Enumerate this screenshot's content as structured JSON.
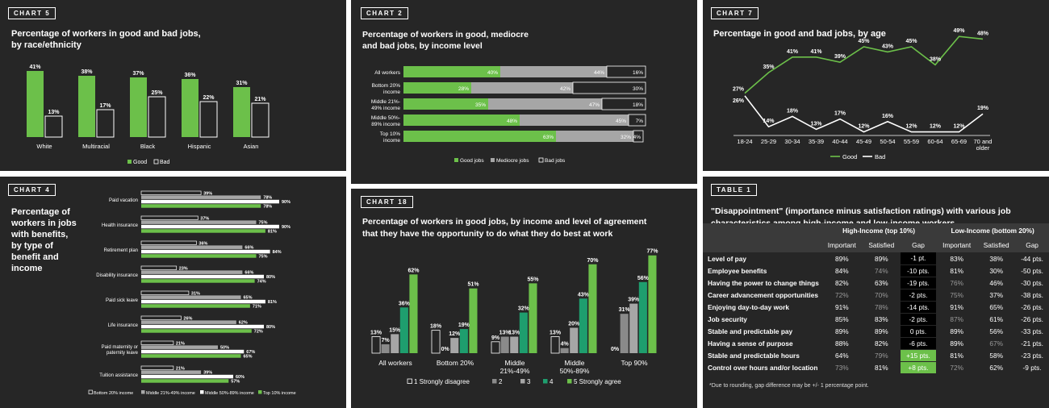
{
  "colors": {
    "panel_bg": "#262626",
    "good_green": "#6cc04a",
    "mediocre_gray": "#a6a6a6",
    "mid_gray": "#8a8a8a",
    "dark_green": "#1e9e6e",
    "white": "#ffffff"
  },
  "chart5": {
    "tag": "CHART 5",
    "title_line1": "Percentage of workers in good and bad jobs,",
    "title_line2": "by race/ethnicity"
  },
  "chart2": {
    "tag": "CHART 2",
    "title_line1": "Percentage of workers in good, mediocre",
    "title_line2": "and bad jobs, by income level"
  },
  "chart7": {
    "tag": "CHART 7",
    "title_line1": "Percentage in good and bad jobs, by age"
  },
  "chart4": {
    "tag": "CHART 4",
    "title_lines": [
      "Percentage of",
      "workers in jobs",
      "with benefits,",
      "by type of",
      "benefit and",
      "income"
    ]
  },
  "chart18": {
    "tag": "CHART 18",
    "title_line1": "Percentage of workers in good jobs, by income and level of agreement",
    "title_line2": "that they have the opportunity to do what they do best at work"
  },
  "chart_data": [
    {
      "id": "chart5",
      "type": "bar",
      "title": "Percentage of workers in good and bad jobs, by race/ethnicity",
      "categories": [
        "White",
        "Multiracial",
        "Black",
        "Hispanic",
        "Asian"
      ],
      "series": [
        {
          "name": "Good",
          "values": [
            41,
            38,
            37,
            36,
            31
          ]
        },
        {
          "name": "Bad",
          "values": [
            13,
            17,
            25,
            22,
            21
          ]
        }
      ],
      "ylim": [
        0,
        45
      ],
      "legend": "bottom",
      "value_suffix": "%"
    },
    {
      "id": "chart2",
      "type": "bar",
      "orientation": "horizontal-stacked",
      "title": "Percentage of workers in good, mediocre and bad jobs, by income level",
      "categories": [
        "All workers",
        "Bottom 20% income",
        "Middle 21%-49% income",
        "Middle 50%-89% income",
        "Top 10% income"
      ],
      "category_lines": [
        [
          "All workers"
        ],
        [
          "Bottom 20%",
          "income"
        ],
        [
          "Middle 21%-",
          "49% income"
        ],
        [
          "Middle 50%-",
          "89% income"
        ],
        [
          "Top 10%",
          "income"
        ]
      ],
      "series": [
        {
          "name": "Good jobs",
          "values": [
            40,
            28,
            35,
            48,
            63
          ]
        },
        {
          "name": "Mediocre jobs",
          "values": [
            44,
            42,
            47,
            45,
            32
          ]
        },
        {
          "name": "Bad jobs",
          "values": [
            16,
            30,
            18,
            7,
            4
          ]
        }
      ],
      "legend": "bottom",
      "value_suffix": "%"
    },
    {
      "id": "chart7",
      "type": "line",
      "title": "Percentage in good and bad jobs, by age",
      "categories": [
        "18-24",
        "25-29",
        "30-34",
        "35-39",
        "40-44",
        "45-49",
        "50-54",
        "55-59",
        "60-64",
        "65-69",
        "70 and older"
      ],
      "category_lines": [
        [
          "18-24"
        ],
        [
          "25-29"
        ],
        [
          "30-34"
        ],
        [
          "35-39"
        ],
        [
          "40-44"
        ],
        [
          "45-49"
        ],
        [
          "50-54"
        ],
        [
          "55-59"
        ],
        [
          "60-64"
        ],
        [
          "65-69"
        ],
        [
          "70 and",
          "older"
        ]
      ],
      "series": [
        {
          "name": "Good",
          "values": [
            27,
            35,
            41,
            41,
            39,
            45,
            43,
            45,
            38,
            49,
            48
          ]
        },
        {
          "name": "Bad",
          "values": [
            26,
            14,
            18,
            13,
            17,
            12,
            16,
            12,
            12,
            12,
            19
          ]
        }
      ],
      "legend": "bottom",
      "value_suffix": "%"
    },
    {
      "id": "chart4",
      "type": "bar",
      "orientation": "horizontal-grouped",
      "title": "Percentage of workers in jobs with benefits, by type of benefit and income",
      "categories": [
        "Paid vacation",
        "Health insurance",
        "Retirement plan",
        "Disability insurance",
        "Paid sick leave",
        "Life insurance",
        "Paid maternity or paternity leave",
        "Tuition assistance"
      ],
      "category_lines": [
        [
          "Paid vacation"
        ],
        [
          "Health insurance"
        ],
        [
          "Retirement plan"
        ],
        [
          "Disability insurance"
        ],
        [
          "Paid sick leave"
        ],
        [
          "Life insurance"
        ],
        [
          "Paid maternity or",
          "paternity leave"
        ],
        [
          "Tuition assistance"
        ]
      ],
      "series": [
        {
          "name": "Bottom 20% income",
          "values": [
            39,
            37,
            36,
            23,
            31,
            26,
            21,
            21
          ]
        },
        {
          "name": "Middle 21%-49% income",
          "values": [
            78,
            75,
            66,
            66,
            65,
            62,
            50,
            39
          ]
        },
        {
          "name": "Middle 50%-89% income",
          "values": [
            90,
            90,
            84,
            80,
            81,
            80,
            67,
            60
          ]
        },
        {
          "name": "Top 10% income",
          "values": [
            78,
            81,
            75,
            74,
            71,
            72,
            65,
            57
          ]
        }
      ],
      "legend": "bottom",
      "value_suffix": "%"
    },
    {
      "id": "chart18",
      "type": "bar",
      "title": "Percentage of workers in good jobs, by income and level of agreement that they have the opportunity to do what they do best at work",
      "categories": [
        "All workers",
        "Bottom 20%",
        "Middle 21%-49%",
        "Middle 50%-89%",
        "Top 90%"
      ],
      "category_lines": [
        [
          "All workers"
        ],
        [
          "Bottom 20%"
        ],
        [
          "Middle",
          "21%-49%"
        ],
        [
          "Middle",
          "50%-89%"
        ],
        [
          "Top 90%"
        ]
      ],
      "series": [
        {
          "name": "1 Strongly disagree",
          "values": [
            13,
            18,
            9,
            13,
            0
          ]
        },
        {
          "name": "2",
          "values": [
            7,
            0,
            13,
            4,
            31
          ]
        },
        {
          "name": "3",
          "values": [
            15,
            12,
            13,
            20,
            39
          ]
        },
        {
          "name": "4",
          "values": [
            36,
            19,
            32,
            43,
            56
          ]
        },
        {
          "name": "5 Strongly agree",
          "values": [
            62,
            51,
            55,
            70,
            77
          ]
        }
      ],
      "ylim": [
        0,
        80
      ],
      "legend": "bottom",
      "value_suffix": "%"
    },
    {
      "id": "table1",
      "type": "table",
      "tag": "TABLE 1",
      "title": "\"Disappointment\" (importance minus satisfaction ratings) with various job characteristics among high-income and low-income workers",
      "groups": [
        "High-Income (top 10%)",
        "Low-Income (bottom 20%)"
      ],
      "columns": [
        "Important",
        "Satisfied",
        "Gap",
        "Important",
        "Satisfied",
        "Gap"
      ],
      "rows": [
        {
          "label": "Level of pay",
          "cells": [
            "89%",
            "89%",
            "-1 pt.",
            "83%",
            "38%",
            "-44 pts."
          ],
          "hi_gap_style": "black",
          "dim": []
        },
        {
          "label": "Employee benefits",
          "cells": [
            "84%",
            "74%",
            "-10 pts.",
            "81%",
            "30%",
            "-50 pts."
          ],
          "hi_gap_style": "black",
          "dim": [
            1
          ]
        },
        {
          "label": "Having the power to change things",
          "cells": [
            "82%",
            "63%",
            "-19 pts.",
            "76%",
            "46%",
            "-30 pts."
          ],
          "hi_gap_style": "black",
          "dim": [
            3
          ]
        },
        {
          "label": "Career advancement opportunities",
          "cells": [
            "72%",
            "70%",
            "-2 pts.",
            "75%",
            "37%",
            "-38 pts."
          ],
          "hi_gap_style": "black",
          "dim": [
            0,
            1,
            3
          ]
        },
        {
          "label": "Enjoying day-to-day work",
          "cells": [
            "91%",
            "78%",
            "-14 pts.",
            "91%",
            "65%",
            "-26 pts."
          ],
          "hi_gap_style": "black",
          "dim": [
            1
          ]
        },
        {
          "label": "Job security",
          "cells": [
            "85%",
            "83%",
            "-2 pts.",
            "87%",
            "61%",
            "-26 pts."
          ],
          "hi_gap_style": "black",
          "dim": [
            3
          ]
        },
        {
          "label": "Stable and predictable pay",
          "cells": [
            "89%",
            "89%",
            "0 pts.",
            "89%",
            "56%",
            "-33 pts."
          ],
          "hi_gap_style": "black",
          "dim": []
        },
        {
          "label": "Having a sense of purpose",
          "cells": [
            "88%",
            "82%",
            "-6 pts.",
            "89%",
            "67%",
            "-21 pts."
          ],
          "hi_gap_style": "black",
          "dim": [
            4
          ]
        },
        {
          "label": "Stable and predictable hours",
          "cells": [
            "64%",
            "79%",
            "+15 pts.",
            "81%",
            "58%",
            "-23 pts."
          ],
          "hi_gap_style": "green",
          "dim": [
            1
          ]
        },
        {
          "label": "Control over hours and/or location",
          "cells": [
            "73%",
            "81%",
            "+8 pts.",
            "72%",
            "62%",
            "-9 pts."
          ],
          "hi_gap_style": "green",
          "dim": [
            0,
            3
          ]
        }
      ],
      "footnote": "*Due to rounding, gap difference may be +/- 1 percentage point."
    }
  ]
}
